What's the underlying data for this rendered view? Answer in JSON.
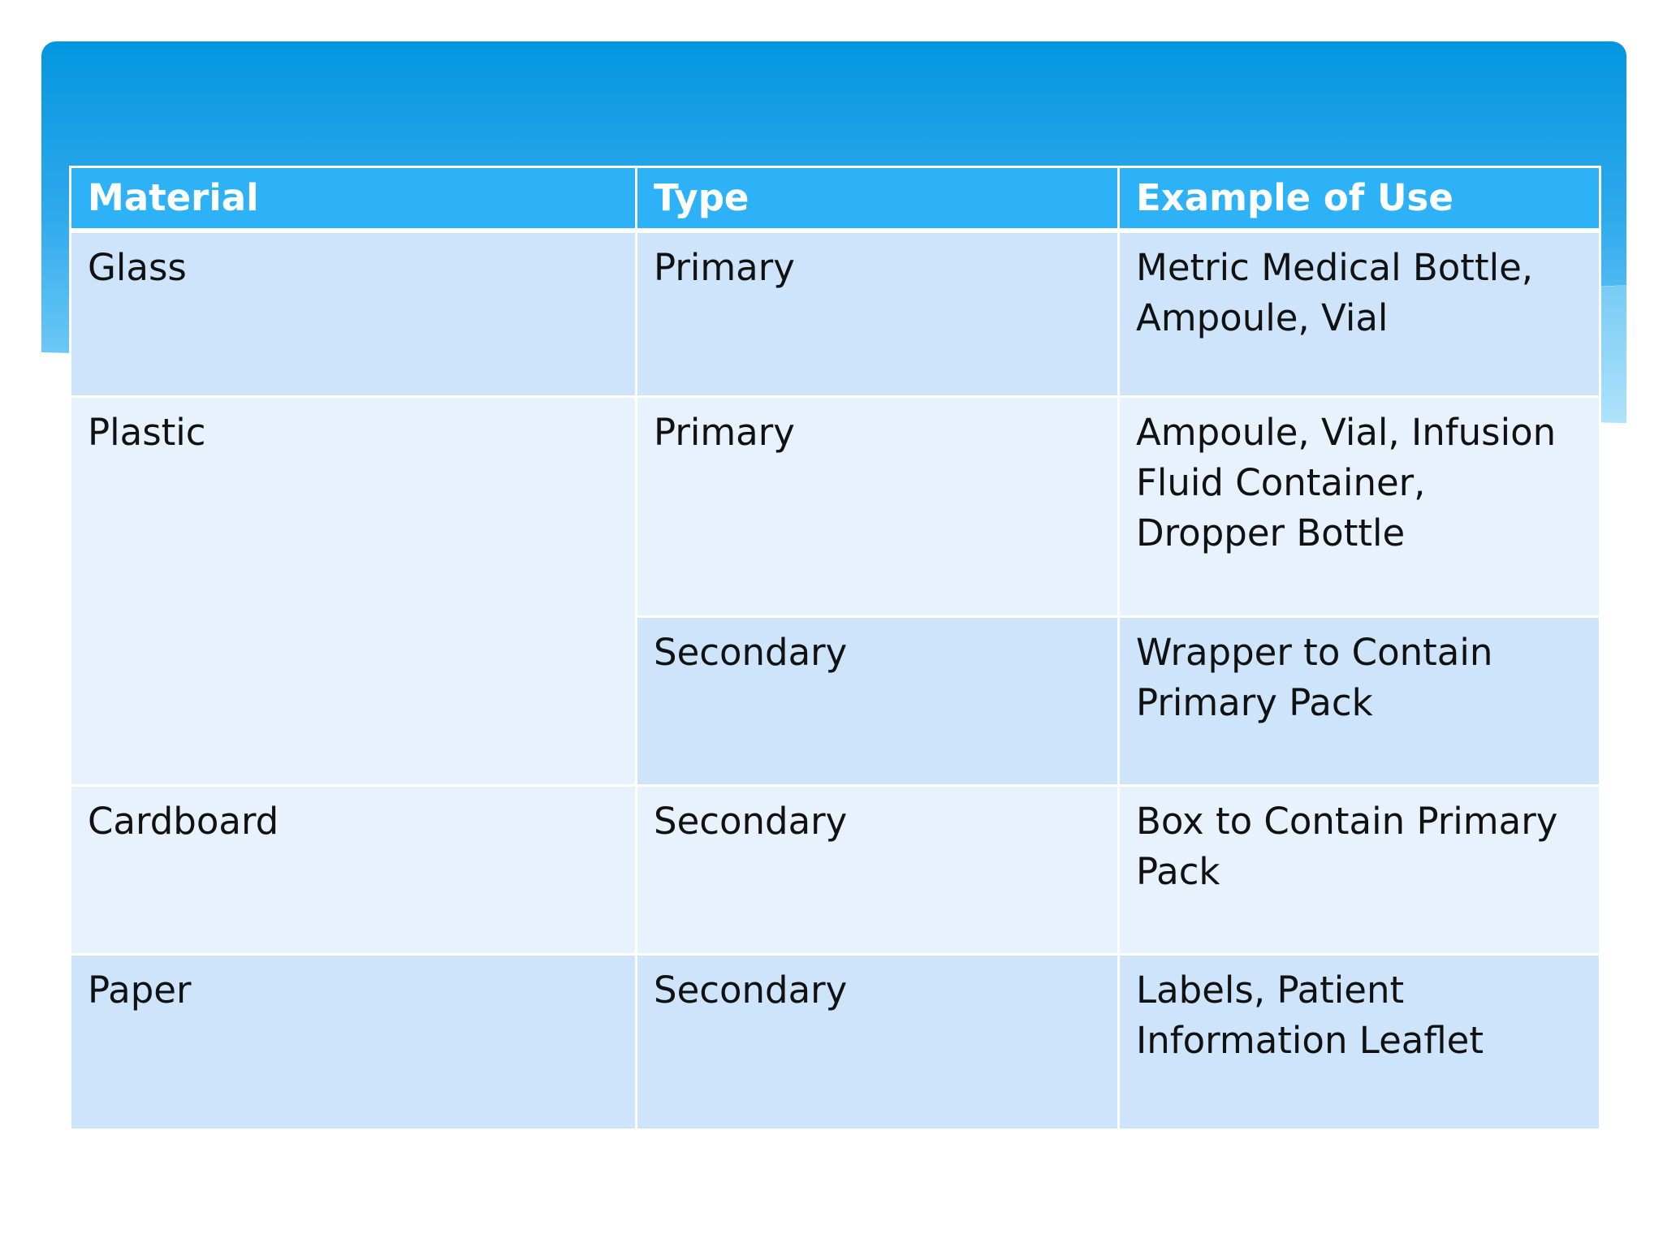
{
  "theme": {
    "header_bg": "#2eb2f7",
    "row_dark": "#cde4fb",
    "row_light": "#e7f2fd",
    "banner_top": "#0496e0",
    "banner_bottom": "#6cc8f6"
  },
  "table": {
    "headers": {
      "material": "Material",
      "type": "Type",
      "example": "Example of Use"
    },
    "rows": [
      {
        "material": "Glass",
        "type": "Primary",
        "example": "Metric Medical Bottle, Ampoule, Vial"
      },
      {
        "material": "Plastic",
        "type": "Primary",
        "example": "Ampoule, Vial, Infusion Fluid Container, Dropper Bottle"
      },
      {
        "material": "",
        "type": "Secondary",
        "example": "Wrapper to Contain Primary Pack"
      },
      {
        "material": "Cardboard",
        "type": "Secondary",
        "example": "Box to Contain Primary Pack"
      },
      {
        "material": "Paper",
        "type": "Secondary",
        "example": "Labels, Patient Information Leaflet"
      }
    ]
  }
}
